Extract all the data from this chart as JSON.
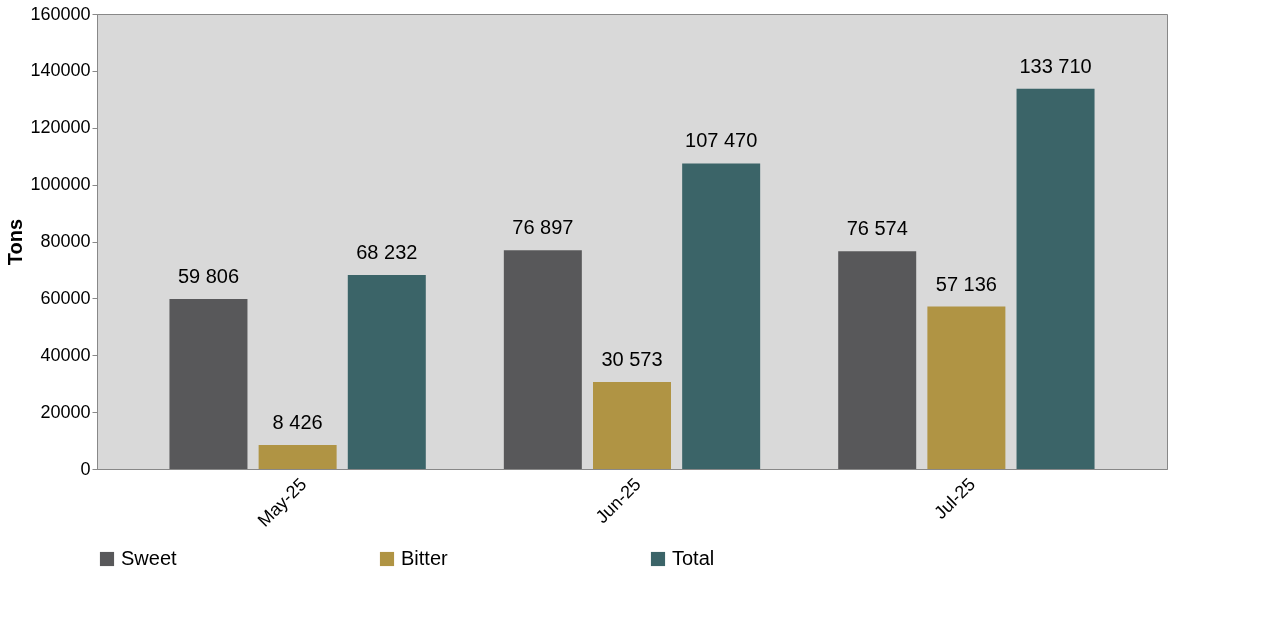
{
  "chart_data": {
    "type": "bar",
    "ylabel": "Tons",
    "categories": [
      "May-25",
      "Jun-25",
      "Jul-25"
    ],
    "series": [
      {
        "name": "Sweet",
        "color": "#58585a",
        "values": [
          59806,
          76897,
          76574
        ],
        "value_labels": [
          "59 806",
          "76 897",
          "76 574"
        ]
      },
      {
        "name": "Bitter",
        "color": "#b09444",
        "values": [
          8426,
          30573,
          57136
        ],
        "value_labels": [
          "8 426",
          "30 573",
          "57 136"
        ]
      },
      {
        "name": "Total",
        "color": "#3b6468",
        "values": [
          68232,
          107470,
          133710
        ],
        "value_labels": [
          "68 232",
          "107 470",
          "133 710"
        ]
      }
    ],
    "ylim": [
      0,
      160000
    ],
    "yticks": [
      0,
      20000,
      40000,
      60000,
      80000,
      100000,
      120000,
      140000,
      160000
    ],
    "grid": false,
    "legend": "bottom"
  }
}
